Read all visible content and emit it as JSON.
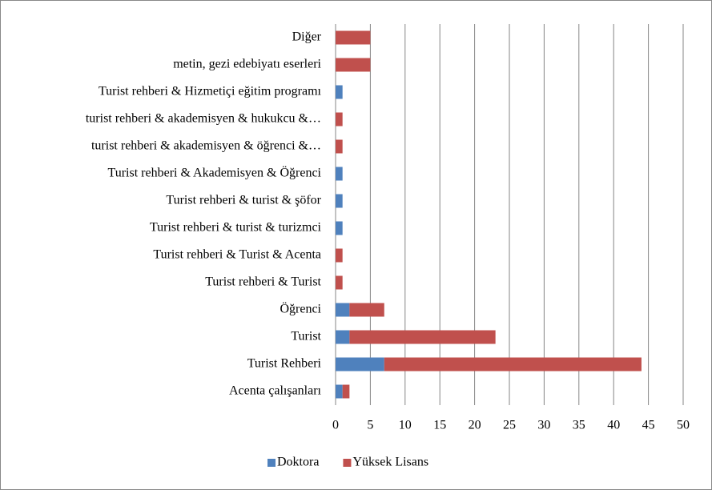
{
  "chart_data": {
    "type": "bar",
    "orientation": "horizontal",
    "stacked": true,
    "categories": [
      "Diğer",
      "metin, gezi edebiyatı eserleri",
      "Turist rehberi & Hizmetiçi eğitim programı",
      "turist rehberi & akademisyen & hukukcu &…",
      "turist rehberi  & akademisyen & öğrenci &…",
      "Turist rehberi & Akademisyen  & Öğrenci",
      "Turist rehberi & turist  & şöfor",
      "Turist rehberi & turist & turizmci",
      "Turist rehberi &  Turist & Acenta",
      "Turist rehberi & Turist",
      "Öğrenci",
      "Turist",
      "Turist Rehberi",
      "Acenta çalışanları"
    ],
    "series": [
      {
        "name": "Doktora",
        "color": "#4f81bd",
        "values": [
          0,
          0,
          1,
          0,
          0,
          1,
          1,
          1,
          0,
          0,
          2,
          2,
          7,
          1
        ]
      },
      {
        "name": "Yüksek Lisans",
        "color": "#c0504d",
        "values": [
          5,
          5,
          0,
          1,
          1,
          0,
          0,
          0,
          1,
          1,
          5,
          21,
          37,
          1
        ]
      }
    ],
    "xlim": [
      0,
      50
    ],
    "xticks": [
      0,
      5,
      10,
      15,
      20,
      25,
      30,
      35,
      40,
      45,
      50
    ],
    "grid": true,
    "legend": "bottom"
  }
}
